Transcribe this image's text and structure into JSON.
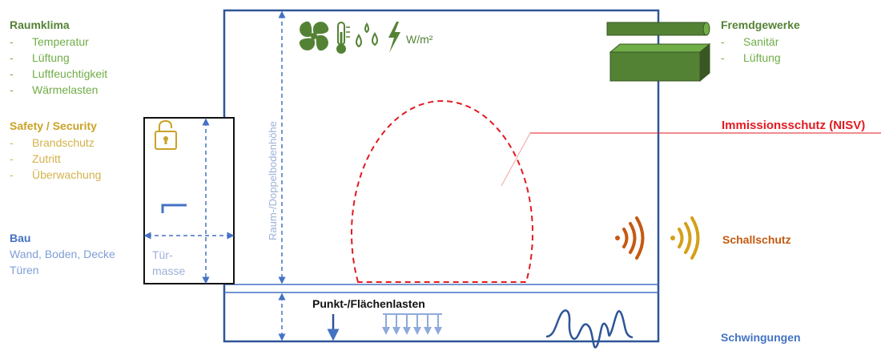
{
  "raumklima": {
    "title": "Raumklima",
    "items": [
      "Temperatur",
      "Lüftung",
      "Luftfeuchtigkeit",
      "Wärmelasten"
    ]
  },
  "safety": {
    "title": "Safety / Security",
    "items": [
      "Brandschutz",
      "Zutritt",
      "Überwachung"
    ]
  },
  "bau": {
    "title": "Bau",
    "line1": "Wand, Boden, Decke",
    "line2": "Türen"
  },
  "fremdgewerke": {
    "title": "Fremdgewerke",
    "items": [
      "Sanitär",
      "Lüftung"
    ]
  },
  "immission": {
    "label": "Immissionsschutz (NISV)"
  },
  "schall": {
    "label": "Schallschutz"
  },
  "schwingungen": {
    "label": "Schwingungen"
  },
  "lasten": {
    "label": "Punkt-/Flächenlasten"
  },
  "heights": {
    "label": "Raum-/Doppelbodenhöhe"
  },
  "door": {
    "line1": "Tür-",
    "line2": "masse"
  },
  "climate_unit": {
    "label": "W/m²"
  },
  "colors": {
    "green": "#548235",
    "gold": "#c9a227",
    "blue": "#4472c4",
    "red": "#e11b22",
    "orange": "#c55a11",
    "frame": "#2f5597"
  },
  "icons": [
    "fan-icon",
    "thermometer-icon",
    "droplets-icon",
    "lightning-icon",
    "padlock-icon",
    "sound-wave-icon"
  ]
}
